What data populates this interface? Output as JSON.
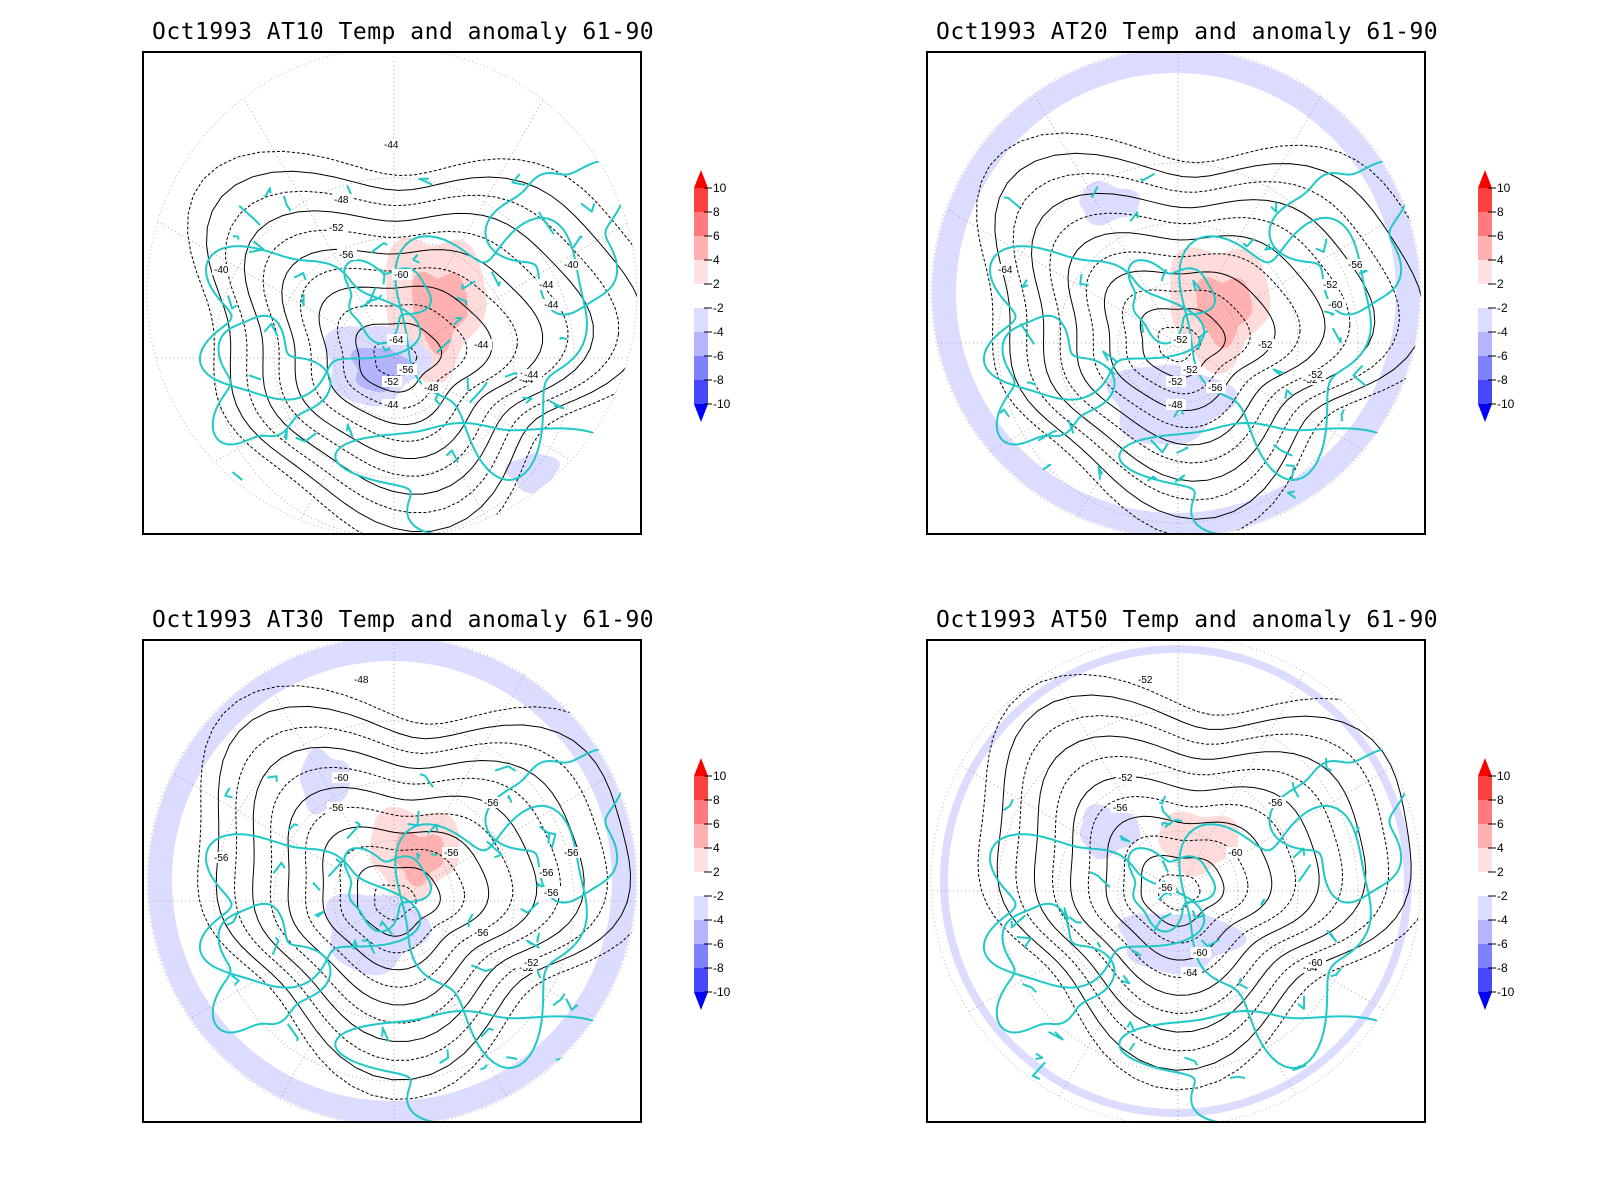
{
  "panels": [
    {
      "title": "Oct1993 AT10 Temp and anomaly 61-90",
      "contour_labels": [
        "-44",
        "-48",
        "-52",
        "-56",
        "-60",
        "-64",
        "-56",
        "-52",
        "-48",
        "-44",
        "-40",
        "-44",
        "-40",
        "-44",
        "-44",
        "-44",
        "-44"
      ],
      "anomalies": [
        {
          "sign": "pos",
          "amp": 5.5
        },
        {
          "sign": "neg",
          "amp": 4.5
        },
        {
          "sign": "neg",
          "amp": 3.0
        }
      ]
    },
    {
      "title": "Oct1993 AT20 Temp and anomaly 61-90",
      "contour_labels": [
        "-52",
        "-52",
        "-52",
        "-56",
        "-48",
        "-64",
        "-60",
        "-56",
        "-52",
        "-52",
        "-52",
        "-52"
      ],
      "anomalies": [
        {
          "sign": "pos",
          "amp": 5.0
        },
        {
          "sign": "neg",
          "amp": 3.0
        },
        {
          "sign": "neg",
          "amp": 2.5
        }
      ]
    },
    {
      "title": "Oct1993 AT30 Temp and anomaly 61-90",
      "contour_labels": [
        "-56",
        "-56",
        "-56",
        "-56",
        "-56",
        "-52",
        "-52",
        "-48",
        "-60",
        "-56",
        "-56",
        "-56"
      ],
      "anomalies": [
        {
          "sign": "pos",
          "amp": 4.5
        },
        {
          "sign": "neg",
          "amp": 3.0
        },
        {
          "sign": "neg",
          "amp": 2.5
        }
      ]
    },
    {
      "title": "Oct1993 AT50 Temp and anomaly 61-90",
      "contour_labels": [
        "-64",
        "-60",
        "-52",
        "-52",
        "-56",
        "-56",
        "-60",
        "-56",
        "-60",
        "-64"
      ],
      "anomalies": [
        {
          "sign": "pos",
          "amp": 3.0
        },
        {
          "sign": "neg",
          "amp": 2.5
        },
        {
          "sign": "neg",
          "amp": 2.5
        }
      ]
    }
  ],
  "colorbar": {
    "levels": [
      "10",
      "8",
      "6",
      "4",
      "2",
      "-2",
      "-4",
      "-6",
      "-8",
      "-10"
    ],
    "colors": [
      "#ff0000",
      "#ff4040",
      "#ff7a7a",
      "#ffb0b0",
      "#ffe0e0",
      "#ffffff",
      "#dcdcff",
      "#b4b4ff",
      "#8080ff",
      "#4848ff",
      "#0000ff"
    ]
  },
  "colors": {
    "coast": "#20c8c8",
    "anom_pos_weak": "#ffdcdc",
    "anom_pos_strong": "#ffb0b0",
    "anom_neg_weak": "#dcdcff",
    "anom_neg_strong": "#b4b4ff",
    "contour": "#000000",
    "graticule": "#999999"
  }
}
